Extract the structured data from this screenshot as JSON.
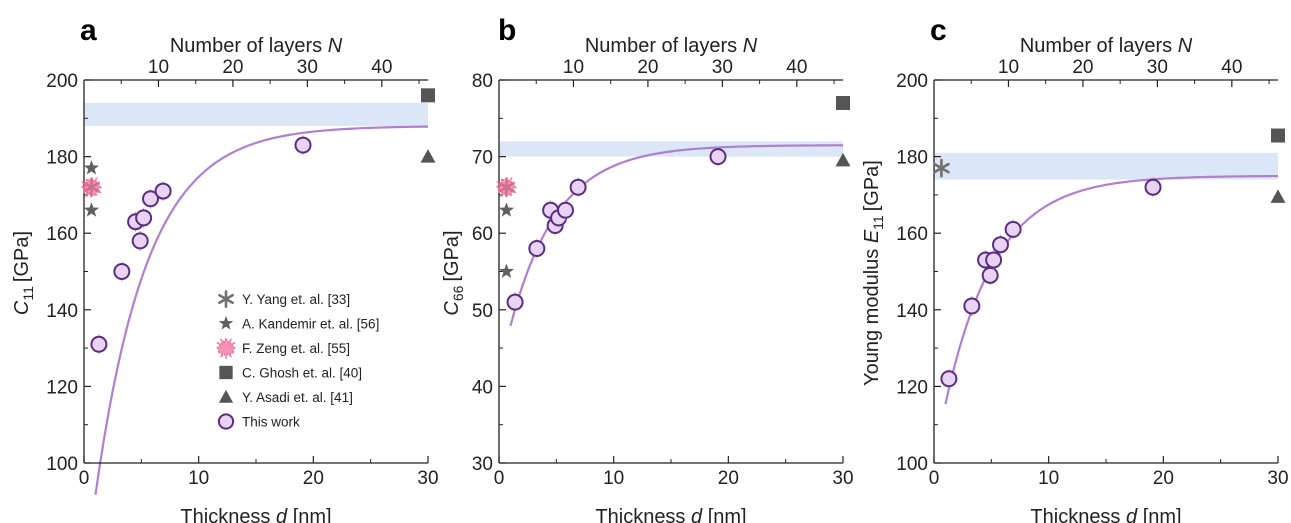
{
  "chart_data": [
    {
      "panel": "a",
      "type": "scatter",
      "xlabel": "Thickness d [nm]",
      "ylabel": "C11 [GPa]",
      "top_xlabel": "Number of layers N",
      "xlim": [
        0,
        30
      ],
      "ylim": [
        100,
        200
      ],
      "top_xlim": [
        0,
        46.2
      ],
      "x_ticks": [
        0,
        10,
        20,
        30
      ],
      "y_ticks": [
        100,
        120,
        140,
        160,
        180,
        200
      ],
      "top_x_ticks": [
        10,
        20,
        30,
        40
      ],
      "band": [
        188,
        194
      ],
      "fit": {
        "a": 188,
        "b": 120,
        "k": 0.22
      },
      "series": [
        {
          "name": "Y. Yang et. al. [33]",
          "marker": "asterisk",
          "color": "#707070",
          "x": [
            0.65
          ],
          "y": [
            172
          ]
        },
        {
          "name": "A. Kandemir et. al. [56]",
          "marker": "star",
          "color": "#606060",
          "x": [
            0.65,
            0.65
          ],
          "y": [
            177,
            166
          ]
        },
        {
          "name": "F. Zeng et. al. [55]",
          "marker": "burst",
          "color": "#f06e9a",
          "x": [
            0.65
          ],
          "y": [
            172
          ]
        },
        {
          "name": "C. Ghosh et. al. [40]",
          "marker": "square",
          "color": "#555555",
          "x": [
            30
          ],
          "y": [
            196
          ]
        },
        {
          "name": "Y. Asadi et. al. [41]",
          "marker": "triangle",
          "color": "#555555",
          "x": [
            30
          ],
          "y": [
            180
          ]
        },
        {
          "name": "This work",
          "marker": "circle",
          "color": "#5a2d82",
          "x": [
            1.3,
            3.3,
            4.5,
            4.9,
            5.2,
            5.8,
            6.9,
            19.1
          ],
          "y": [
            131,
            150,
            163,
            158,
            164,
            169,
            171,
            183
          ]
        }
      ]
    },
    {
      "panel": "b",
      "type": "scatter",
      "xlabel": "Thickness d [nm]",
      "ylabel": "C66 [GPa]",
      "top_xlabel": "Number of layers N",
      "xlim": [
        0,
        30
      ],
      "ylim": [
        30,
        80
      ],
      "top_xlim": [
        0,
        46.2
      ],
      "x_ticks": [
        0,
        10,
        20,
        30
      ],
      "y_ticks": [
        30,
        40,
        50,
        60,
        70,
        80
      ],
      "top_x_ticks": [
        10,
        20,
        30,
        40
      ],
      "band": [
        70,
        72
      ],
      "fit": {
        "a": 71.5,
        "b": 30,
        "k": 0.24
      },
      "series": [
        {
          "name": "Y. Yang et. al. [33]",
          "marker": "asterisk",
          "color": "#707070",
          "x": [
            0.65
          ],
          "y": [
            66
          ]
        },
        {
          "name": "A. Kandemir et. al. [56]",
          "marker": "star",
          "color": "#606060",
          "x": [
            0.65,
            0.65
          ],
          "y": [
            63,
            55
          ]
        },
        {
          "name": "F. Zeng et. al. [55]",
          "marker": "burst",
          "color": "#f06e9a",
          "x": [
            0.65
          ],
          "y": [
            66
          ]
        },
        {
          "name": "C. Ghosh et. al. [40]",
          "marker": "square",
          "color": "#555555",
          "x": [
            30
          ],
          "y": [
            77
          ]
        },
        {
          "name": "Y. Asadi et. al. [41]",
          "marker": "triangle",
          "color": "#555555",
          "x": [
            30
          ],
          "y": [
            69.5
          ]
        },
        {
          "name": "This work",
          "marker": "circle",
          "color": "#5a2d82",
          "x": [
            1.4,
            3.3,
            4.5,
            4.9,
            5.2,
            5.8,
            6.9,
            19.1
          ],
          "y": [
            51,
            58,
            63,
            61,
            62,
            63,
            66,
            70
          ]
        }
      ]
    },
    {
      "panel": "c",
      "type": "scatter",
      "xlabel": "Thickness d [nm]",
      "ylabel": "Young modulus E11 [GPa]",
      "top_xlabel": "Number of layers N",
      "xlim": [
        0,
        30
      ],
      "ylim": [
        100,
        200
      ],
      "top_xlim": [
        0,
        46.2
      ],
      "x_ticks": [
        0,
        10,
        20,
        30
      ],
      "y_ticks": [
        100,
        120,
        140,
        160,
        180,
        200
      ],
      "top_x_ticks": [
        10,
        20,
        30,
        40
      ],
      "band": [
        174,
        181
      ],
      "fit": {
        "a": 175,
        "b": 75,
        "k": 0.23
      },
      "series": [
        {
          "name": "Y. Yang et. al. [33]",
          "marker": "asterisk",
          "color": "#707070",
          "x": [
            0.65
          ],
          "y": [
            177
          ]
        },
        {
          "name": "C. Ghosh et. al. [40]",
          "marker": "square",
          "color": "#555555",
          "x": [
            30
          ],
          "y": [
            185.5
          ]
        },
        {
          "name": "Y. Asadi et. al. [41]",
          "marker": "triangle",
          "color": "#555555",
          "x": [
            30
          ],
          "y": [
            169.5
          ]
        },
        {
          "name": "This work",
          "marker": "circle",
          "color": "#5a2d82",
          "x": [
            1.3,
            3.3,
            4.5,
            4.9,
            5.2,
            5.8,
            6.9,
            19.1
          ],
          "y": [
            122,
            141,
            153,
            149,
            153,
            157,
            161,
            172
          ]
        }
      ]
    }
  ],
  "legend": {
    "panel": "a",
    "placement": "bottom-right",
    "entries": [
      {
        "label": "Y. Yang et. al. [33]",
        "marker": "asterisk",
        "color": "#707070"
      },
      {
        "label": "A. Kandemir et. al. [56]",
        "marker": "star",
        "color": "#606060"
      },
      {
        "label": "F. Zeng et. al. [55]",
        "marker": "burst",
        "color": "#f06e9a"
      },
      {
        "label": "C. Ghosh et. al. [40]",
        "marker": "square",
        "color": "#555555"
      },
      {
        "label": "Y. Asadi et. al. [41]",
        "marker": "triangle",
        "color": "#555555"
      },
      {
        "label": "This work",
        "marker": "circle",
        "color": "#5a2d82"
      }
    ]
  },
  "colors": {
    "band": "#dbe7f7",
    "fit_line": "#b07fcf",
    "circle_fill": "#e9d3f2",
    "circle_stroke": "#5a2d82",
    "axis": "#222222"
  },
  "axis_text": {
    "x_bottom": "Thickness",
    "x_bottom_var": "d",
    "x_bottom_unit": "[nm]",
    "x_top": "Number of layers",
    "x_top_var": "N",
    "y_a_var": "C",
    "y_a_sub": "11",
    "y_a_unit": "[GPa]",
    "y_b_var": "C",
    "y_b_sub": "66",
    "y_b_unit": "[GPa]",
    "y_c_prefix": "Young modulus",
    "y_c_var": "E",
    "y_c_sub": "11",
    "y_c_unit": "[GPa]"
  }
}
